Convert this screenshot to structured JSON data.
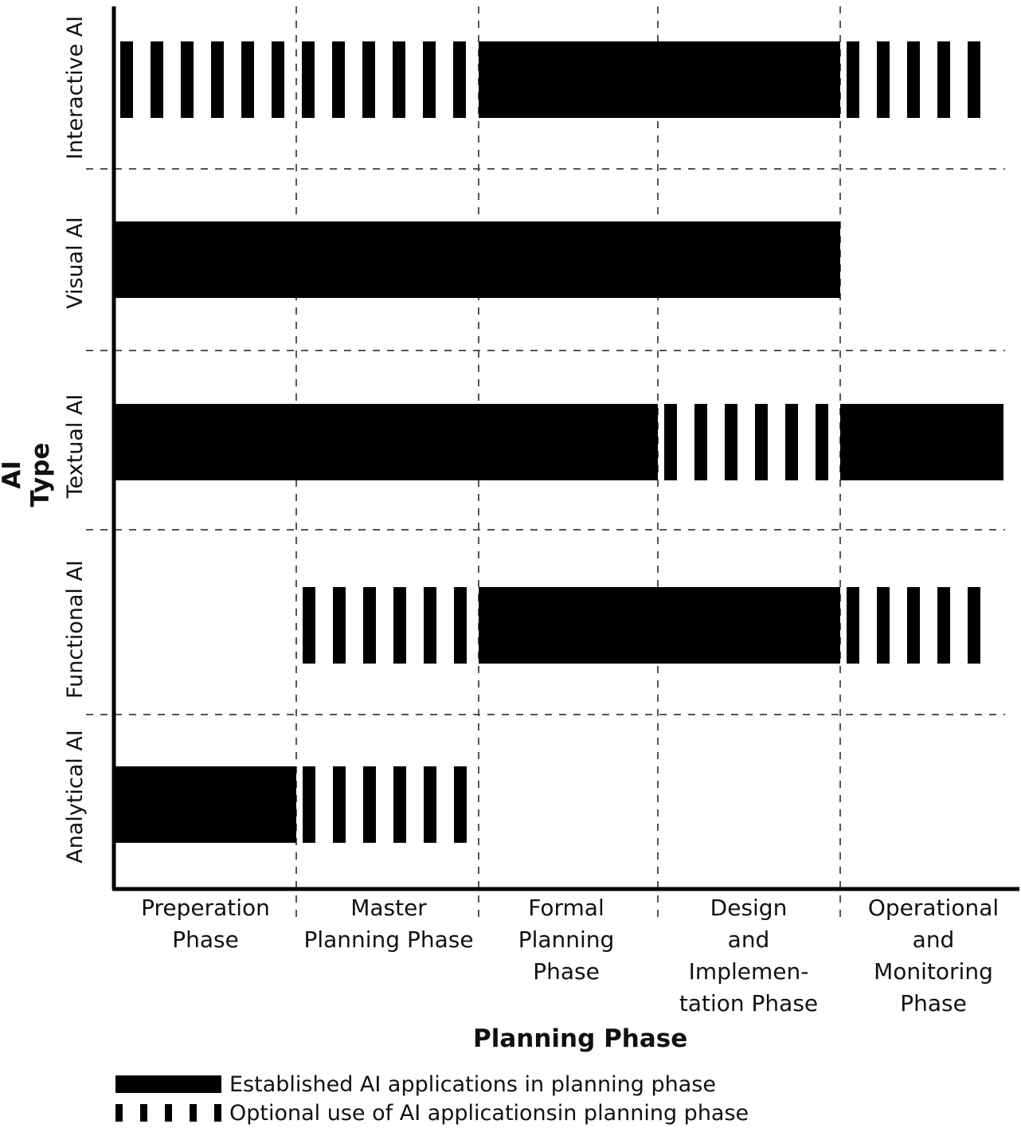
{
  "chart_data": {
    "type": "bar",
    "title": "",
    "xlabel": "Planning Phase",
    "ylabel": "AI Type",
    "phases": [
      "Preperation\nPhase",
      "Master\nPlanning Phase",
      "Formal\nPlanning\nPhase",
      "Design\nand\nImplemen-\ntation Phase",
      "Operational\nand\nMonitoring\nPhase"
    ],
    "rows": [
      {
        "name": "Interactive AI",
        "cells": [
          "optional",
          "optional",
          "established",
          "established",
          "optional"
        ]
      },
      {
        "name": "Visual AI",
        "cells": [
          "established",
          "established",
          "established",
          "established",
          "none"
        ]
      },
      {
        "name": "Textual AI",
        "cells": [
          "established",
          "established",
          "established",
          "optional",
          "established"
        ]
      },
      {
        "name": "Functional AI",
        "cells": [
          "none",
          "optional",
          "established",
          "established",
          "optional"
        ]
      },
      {
        "name": "Analytical AI",
        "cells": [
          "established",
          "optional",
          "none",
          "none",
          "none"
        ]
      }
    ],
    "legend": [
      {
        "key": "established",
        "label": "Established AI applications in planning phase"
      },
      {
        "key": "optional",
        "label": "Optional use of AI applicationsin planning phase"
      }
    ],
    "grid": true,
    "legend_placement": "bottom-left"
  },
  "colors": {
    "fill": "#000000",
    "grid": "#555555"
  }
}
